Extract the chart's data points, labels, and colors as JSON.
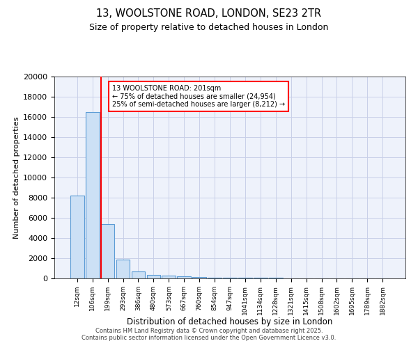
{
  "title1": "13, WOOLSTONE ROAD, LONDON, SE23 2TR",
  "title2": "Size of property relative to detached houses in London",
  "xlabel": "Distribution of detached houses by size in London",
  "ylabel": "Number of detached properties",
  "bar_color": "#cce0f5",
  "bar_edge_color": "#5b9bd5",
  "bins": [
    "12sqm",
    "106sqm",
    "199sqm",
    "293sqm",
    "386sqm",
    "480sqm",
    "573sqm",
    "667sqm",
    "760sqm",
    "854sqm",
    "947sqm",
    "1041sqm",
    "1134sqm",
    "1228sqm",
    "1321sqm",
    "1415sqm",
    "1508sqm",
    "1602sqm",
    "1695sqm",
    "1789sqm",
    "1882sqm"
  ],
  "values": [
    8200,
    16500,
    5400,
    1850,
    700,
    350,
    250,
    200,
    150,
    100,
    80,
    60,
    50,
    40,
    30,
    25,
    20,
    15,
    12,
    10,
    5
  ],
  "red_line_x": 2,
  "annotation_title": "13 WOOLSTONE ROAD: 201sqm",
  "annotation_line1": "← 75% of detached houses are smaller (24,954)",
  "annotation_line2": "25% of semi-detached houses are larger (8,212) →",
  "ylim": [
    0,
    20000
  ],
  "yticks": [
    0,
    2000,
    4000,
    6000,
    8000,
    10000,
    12000,
    14000,
    16000,
    18000,
    20000
  ],
  "background_color": "#eef2fb",
  "grid_color": "#c8cfe8",
  "footer1": "Contains HM Land Registry data © Crown copyright and database right 2025.",
  "footer2": "Contains public sector information licensed under the Open Government Licence v3.0."
}
